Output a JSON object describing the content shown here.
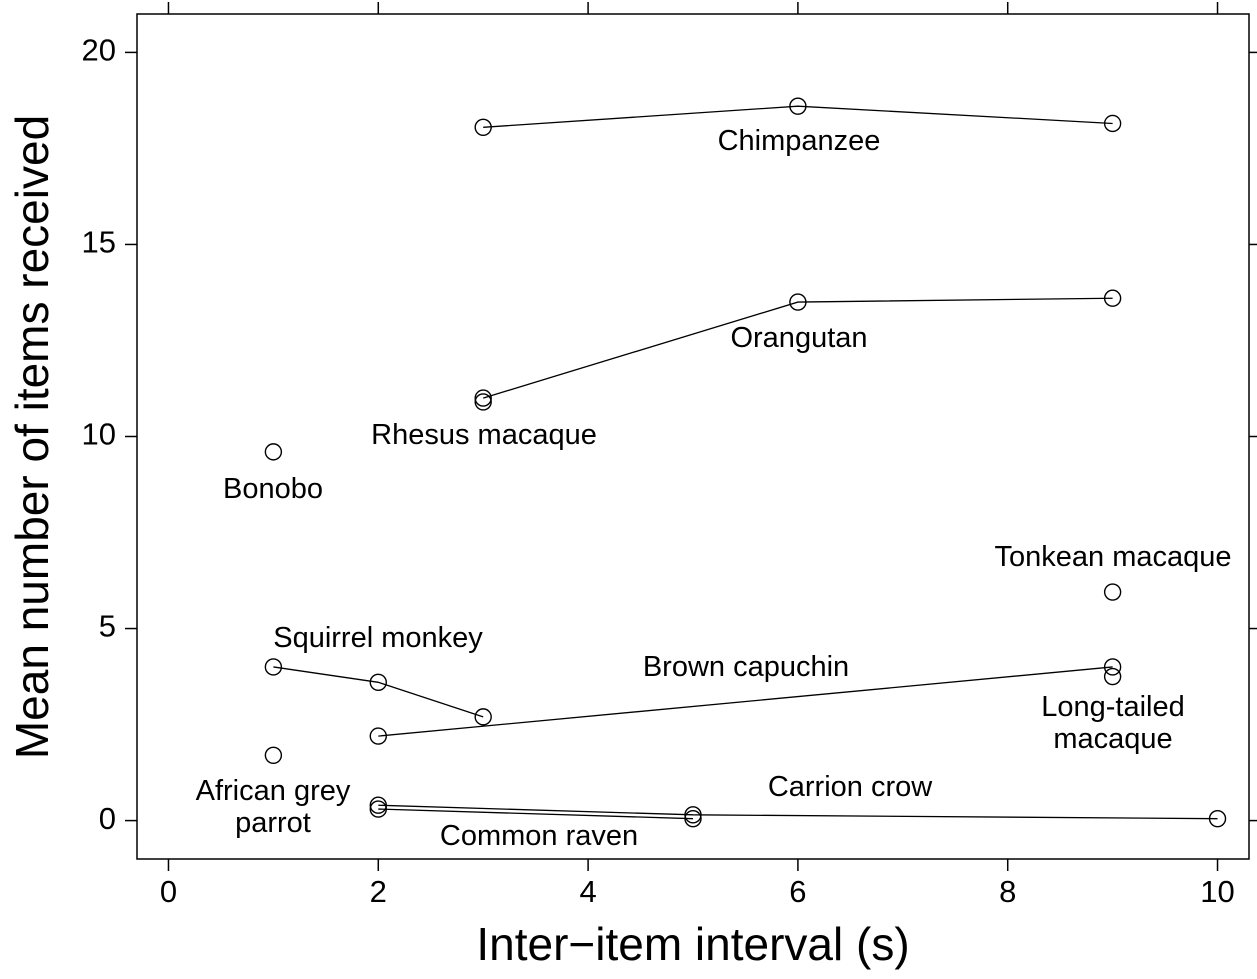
{
  "chart_data": {
    "type": "line",
    "x_label": "Inter−item interval (s)",
    "y_label": "Mean number of items received",
    "xlim": [
      -0.3,
      10.3
    ],
    "xticks": [
      0,
      2,
      4,
      6,
      8,
      10
    ],
    "ylim": [
      -1,
      21
    ],
    "yticks": [
      0,
      5,
      10,
      15,
      20
    ],
    "color": "#000000",
    "series": [
      {
        "name": "Chimpanzee",
        "x": [
          3,
          6,
          9
        ],
        "values": [
          18.05,
          18.6,
          18.15
        ]
      },
      {
        "name": "Orangutan",
        "x": [
          3,
          6,
          9
        ],
        "values": [
          11.0,
          13.5,
          13.6
        ]
      },
      {
        "name": "Rhesus macaque",
        "x": [
          3
        ],
        "values": [
          10.9
        ]
      },
      {
        "name": "Bonobo",
        "x": [
          1
        ],
        "values": [
          9.6
        ]
      },
      {
        "name": "Tonkean macaque",
        "x": [
          9
        ],
        "values": [
          5.95
        ]
      },
      {
        "name": "Squirrel monkey",
        "x": [
          1,
          2,
          3
        ],
        "values": [
          4.0,
          3.6,
          2.7
        ]
      },
      {
        "name": "Brown capuchin",
        "x": [
          2,
          9
        ],
        "values": [
          2.2,
          4.0
        ]
      },
      {
        "name": "Long-tailed macaque",
        "x": [
          9
        ],
        "values": [
          3.75
        ]
      },
      {
        "name": "African grey parrot",
        "x": [
          1
        ],
        "values": [
          1.7
        ]
      },
      {
        "name": "Carrion crow",
        "x": [
          2,
          5,
          10
        ],
        "values": [
          0.4,
          0.15,
          0.05
        ]
      },
      {
        "name": "Common raven",
        "x": [
          2,
          5
        ],
        "values": [
          0.3,
          0.05
        ]
      }
    ]
  }
}
